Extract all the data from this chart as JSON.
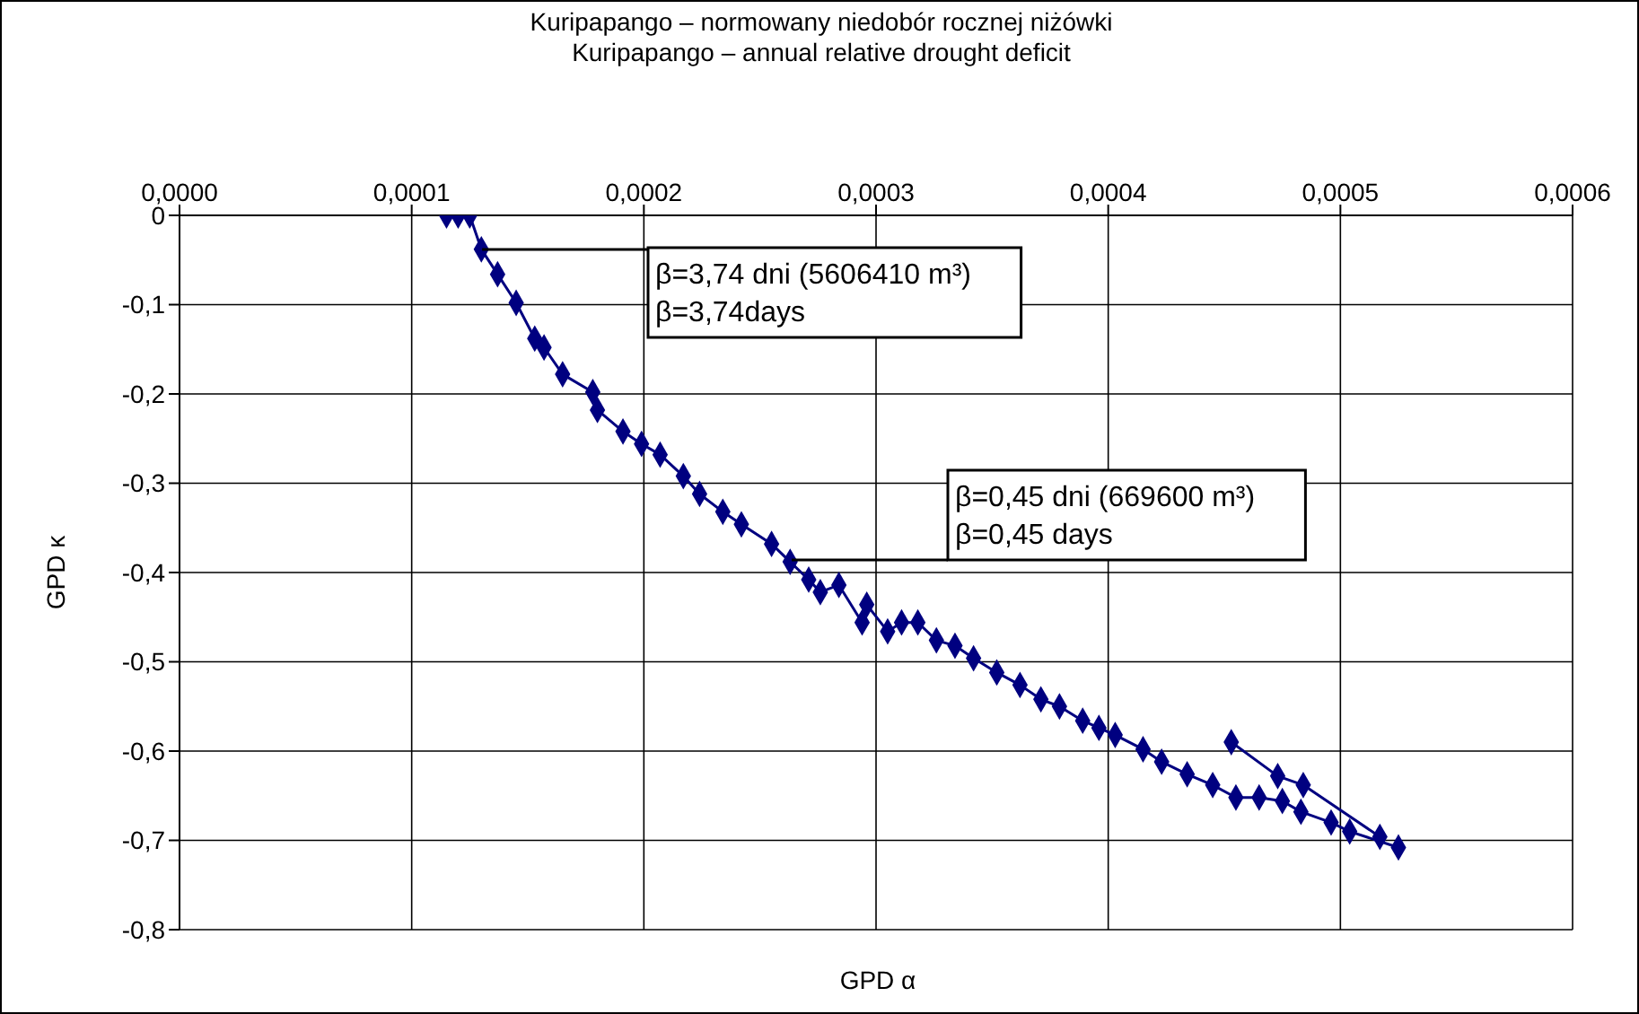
{
  "chart_data": {
    "type": "line",
    "title": "Kuripapango – normowany niedobór rocznej niżówki",
    "subtitle": "Kuripapango – annual relative drought deficit",
    "xlabel": "GPD α",
    "ylabel": "GPD κ",
    "xlim": [
      0,
      0.0006
    ],
    "xticks": [
      {
        "value": 0,
        "label": "0,0000"
      },
      {
        "value": 0.0001,
        "label": "0,0001"
      },
      {
        "value": 0.0002,
        "label": "0,0002"
      },
      {
        "value": 0.0003,
        "label": "0,0003"
      },
      {
        "value": 0.0004,
        "label": "0,0004"
      },
      {
        "value": 0.0005,
        "label": "0,0005"
      },
      {
        "value": 0.0006,
        "label": "0,0006"
      }
    ],
    "ylim": [
      -0.8,
      0
    ],
    "yticks": [
      {
        "value": 0,
        "label": "0"
      },
      {
        "value": -0.1,
        "label": "-0,1"
      },
      {
        "value": -0.2,
        "label": "-0,2"
      },
      {
        "value": -0.3,
        "label": "-0,3"
      },
      {
        "value": -0.4,
        "label": "-0,4"
      },
      {
        "value": -0.5,
        "label": "-0,5"
      },
      {
        "value": -0.6,
        "label": "-0,6"
      },
      {
        "value": -0.7,
        "label": "-0,7"
      },
      {
        "value": -0.8,
        "label": "-0,8"
      }
    ],
    "grid": true,
    "legend": false,
    "marker": "diamond",
    "line_style": "solid",
    "series": [
      {
        "color": "#000080",
        "x": [
          0.000115,
          0.00012,
          0.000125,
          0.00013,
          0.000137,
          0.000145,
          0.000153,
          0.000157,
          0.000165,
          0.000178,
          0.00018,
          0.000191,
          0.000199,
          0.000207,
          0.000217,
          0.000224,
          0.000234,
          0.000242,
          0.000255,
          0.000263,
          0.000271,
          0.000276,
          0.000284,
          0.000294,
          0.000296,
          0.000305,
          0.000311,
          0.000318,
          0.000326,
          0.000334,
          0.000342,
          0.000352,
          0.000362,
          0.000371,
          0.000379,
          0.000389,
          0.000396,
          0.000403,
          0.000415,
          0.000423,
          0.000434,
          0.000445,
          0.000455,
          0.000465,
          0.000475,
          0.000483,
          0.000496,
          0.000504,
          0.000516,
          0.000525
        ],
        "values": [
          0,
          0,
          0,
          -0.038,
          -0.066,
          -0.098,
          -0.138,
          -0.148,
          -0.178,
          -0.198,
          -0.218,
          -0.242,
          -0.256,
          -0.268,
          -0.292,
          -0.312,
          -0.332,
          -0.346,
          -0.368,
          -0.388,
          -0.408,
          -0.422,
          -0.414,
          -0.456,
          -0.436,
          -0.466,
          -0.456,
          -0.456,
          -0.476,
          -0.482,
          -0.496,
          -0.512,
          -0.526,
          -0.542,
          -0.55,
          -0.566,
          -0.574,
          -0.582,
          -0.598,
          -0.612,
          -0.626,
          -0.638,
          -0.652,
          -0.652,
          -0.656,
          -0.668,
          -0.68,
          -0.69,
          null,
          -0.708
        ]
      },
      {
        "color": "#000080",
        "x": [
          0.000453,
          0.000473,
          0.000484,
          0.000517
        ],
        "values": [
          -0.59,
          -0.628,
          -0.638,
          -0.696
        ]
      }
    ],
    "annotations": [
      {
        "text": "β=3,74 dni (5606410 m³)\nβ=3,74days",
        "x": 0.00013,
        "y": -0.038
      },
      {
        "text": "β=0,45 dni (669600 m³)\nβ=0,45 days",
        "x": 0.000263,
        "y": -0.388
      }
    ]
  }
}
